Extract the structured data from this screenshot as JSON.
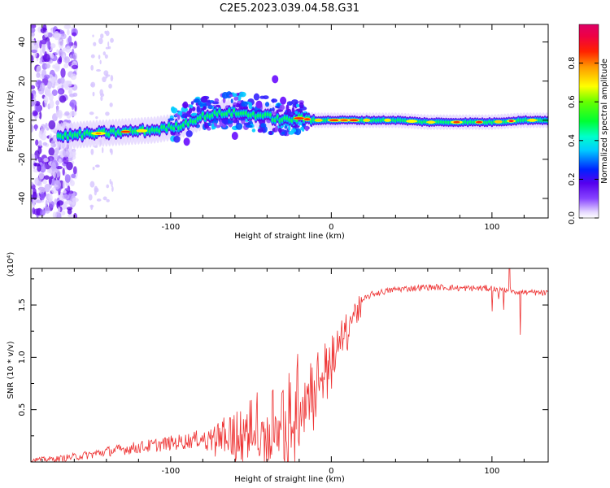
{
  "title": "C2E5.2023.039.04.58.G31",
  "chart_data": [
    {
      "type": "heatmap",
      "xlabel": "Height of straight line (km)",
      "ylabel": "Frequency (Hz)",
      "xlim": [
        -187,
        135
      ],
      "ylim": [
        -50,
        49
      ],
      "xticks": [
        -100,
        0,
        100
      ],
      "xtick_labels": [
        "-100",
        "0",
        "100"
      ],
      "yticks": [
        -40,
        -20,
        0,
        20,
        40
      ],
      "ytick_labels": [
        "-40",
        "-20",
        "0",
        "20",
        "40"
      ],
      "ridge": {
        "x": [
          -165,
          -150,
          -130,
          -110,
          -95,
          -80,
          -65,
          -50,
          -40,
          -30,
          -20,
          -10,
          0,
          20,
          40,
          60,
          80,
          100,
          120,
          135
        ],
        "y": [
          -8,
          -7,
          -6,
          -5,
          -3,
          2,
          4,
          3,
          2,
          0,
          1,
          0,
          0,
          0,
          0,
          -1,
          -1,
          -1,
          0,
          0
        ]
      },
      "colorbar": {
        "label": "Normalized spectral amplitude",
        "range": [
          0.0,
          1.0
        ],
        "ticks": [
          0.0,
          0.2,
          0.4,
          0.6,
          0.8
        ],
        "tick_labels": [
          "0.0",
          "0.2",
          "0.4",
          "0.6",
          "0.8"
        ]
      }
    },
    {
      "type": "line",
      "xlabel": "Height of straight line (km)",
      "ylabel": "SNR (10 * v/v)",
      "scale_label": "(x10⁴)",
      "xlim": [
        -187,
        135
      ],
      "ylim": [
        0,
        1.85
      ],
      "xticks": [
        -100,
        0,
        100
      ],
      "xtick_labels": [
        "-100",
        "0",
        "100"
      ],
      "yticks": [
        0.5,
        1.0,
        1.5
      ],
      "ytick_labels": [
        "0.5",
        "1.0",
        "1.5"
      ],
      "series": [
        {
          "color": "#ee3333",
          "x": [
            -187,
            -170,
            -160,
            -150,
            -140,
            -130,
            -120,
            -110,
            -100,
            -90,
            -80,
            -70,
            -60,
            -50,
            -40,
            -35,
            -30,
            -25,
            -20,
            -15,
            -10,
            -5,
            0,
            5,
            10,
            15,
            20,
            25,
            30,
            40,
            50,
            60,
            70,
            80,
            90,
            100,
            105,
            110,
            115,
            120,
            125,
            135
          ],
          "y": [
            0.02,
            0.03,
            0.05,
            0.07,
            0.1,
            0.12,
            0.14,
            0.16,
            0.18,
            0.2,
            0.23,
            0.26,
            0.3,
            0.35,
            0.4,
            0.45,
            0.5,
            0.55,
            0.6,
            0.7,
            0.8,
            0.9,
            1.0,
            1.15,
            1.3,
            1.45,
            1.55,
            1.6,
            1.62,
            1.65,
            1.66,
            1.67,
            1.67,
            1.66,
            1.66,
            1.66,
            1.64,
            1.65,
            1.63,
            1.62,
            1.62,
            1.61
          ]
        }
      ]
    }
  ]
}
